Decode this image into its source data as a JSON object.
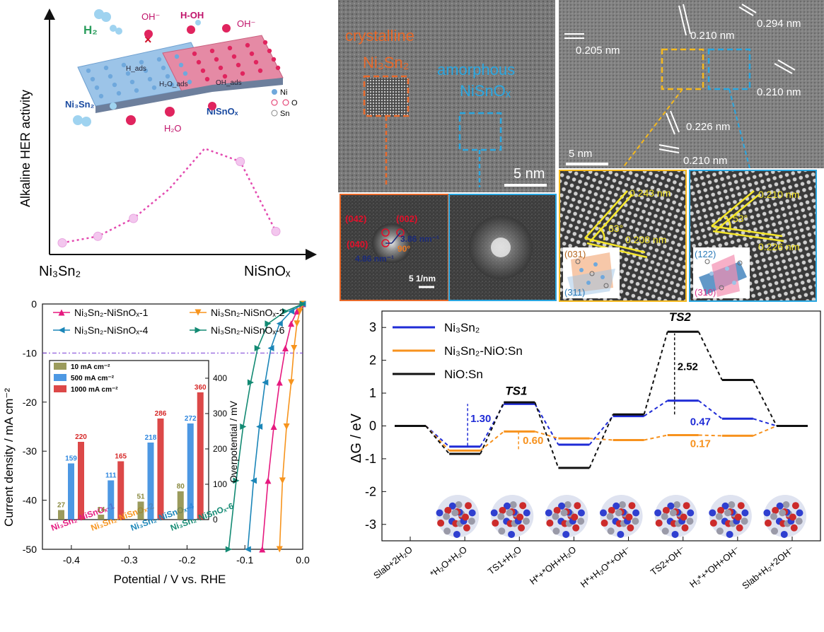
{
  "panel_a": {
    "y_label": "Alkaline HER activity",
    "x_left": "Ni₃Sn₂",
    "x_right": "NiSnOₓ",
    "labels": {
      "h2": "H₂",
      "oh1": "OH⁻",
      "hoh": "H-OH",
      "oh2": "OH⁻",
      "x": "×",
      "hads": "H_ads",
      "ohads": "OH_ads",
      "h2o_ads": "H₂O_ads",
      "h2o": "H₂O",
      "ni3sn2": "Ni₃Sn₂",
      "nisnox": "NiSnOₓ",
      "legend": [
        "Ni",
        "O",
        "Sn"
      ]
    },
    "colors": {
      "ni": "#6fa8dc",
      "o": "#e0245e",
      "sn": "#b8b8c8",
      "curve": "#e34ab0"
    },
    "curve_points": [
      0.05,
      0.09,
      0.2,
      0.38,
      0.63,
      0.55,
      0.12
    ]
  },
  "panel_tem1": {
    "crystalline": "crystalline",
    "ni3sn2": "Ni₃Sn₂",
    "amorphous": "amorphous",
    "nisnox": "NiSnOₓ",
    "scale": "5 nm",
    "fft": {
      "l042": "(042)",
      "l002": "(002)",
      "l040": "(040)",
      "d1": "3.86 nm⁻¹",
      "d2": "4.86 nm⁻¹",
      "angle": "90°",
      "scale": "5 1/nm"
    },
    "colors": {
      "orange": "#e8692a",
      "blue": "#29a7e1"
    }
  },
  "panel_tem2": {
    "d205": "0.205 nm",
    "d210a": "0.210 nm",
    "d294": "0.294 nm",
    "d210b": "0.210 nm",
    "d226": "0.226 nm",
    "d210c": "0.210 nm",
    "scale": "5 nm",
    "inset_left": {
      "d243": "0.243 nm",
      "angle": "63°",
      "d208": "0.208 nm",
      "p1": "(031)",
      "p2": "(311)"
    },
    "inset_right": {
      "d210": "0.210 nm",
      "angle": "53°",
      "d226": "0.226 nm",
      "p1": "(122)",
      "p2": "(310)"
    }
  },
  "chart_data": [
    {
      "type": "line",
      "xlabel": "Potential / V vs. RHE",
      "ylabel": "Current density / mA cm⁻²",
      "xlim": [
        -0.45,
        0.0
      ],
      "ylim": [
        -50,
        0
      ],
      "x_ticks": [
        "-0.4",
        "-0.3",
        "-0.2",
        "-0.1",
        "0.0"
      ],
      "y_ticks": [
        "0",
        "-10",
        "-20",
        "-30",
        "-40",
        "-50"
      ],
      "reference_line": -10,
      "series": [
        {
          "name": "Ni₃Sn₂-NiSnOₓ-1",
          "color": "#e6197f",
          "marker": "triangle-up",
          "x": [
            0.0,
            -0.01,
            -0.02,
            -0.03,
            -0.04,
            -0.05,
            -0.06,
            -0.07
          ],
          "y": [
            0,
            -1.5,
            -4,
            -9,
            -16,
            -25,
            -36,
            -50
          ]
        },
        {
          "name": "Ni₃Sn₂-NiSnOₓ-2",
          "color": "#f7941d",
          "marker": "triangle-down",
          "x": [
            0.0,
            -0.005,
            -0.01,
            -0.015,
            -0.02,
            -0.028,
            -0.035,
            -0.04
          ],
          "y": [
            0,
            -1.5,
            -4,
            -9,
            -16,
            -25,
            -36,
            -50
          ]
        },
        {
          "name": "Ni₃Sn₂-NiSnOₓ-4",
          "color": "#1b86b8",
          "marker": "triangle-left",
          "x": [
            0.0,
            -0.02,
            -0.04,
            -0.055,
            -0.065,
            -0.075,
            -0.085,
            -0.095
          ],
          "y": [
            0,
            -1.5,
            -4,
            -9,
            -16,
            -25,
            -36,
            -50
          ]
        },
        {
          "name": "Ni₃Sn₂-NiSnOₓ-6",
          "color": "#138a73",
          "marker": "triangle-right",
          "x": [
            0.0,
            -0.03,
            -0.06,
            -0.078,
            -0.09,
            -0.103,
            -0.115,
            -0.128
          ],
          "y": [
            0,
            -1.5,
            -4,
            -9,
            -16,
            -25,
            -36,
            -50
          ]
        }
      ]
    },
    {
      "type": "bar",
      "ylabel": "Overpotential / mV",
      "ylim": [
        0,
        450
      ],
      "y_ticks": [
        "0",
        "100",
        "200",
        "300",
        "400"
      ],
      "categories": [
        "Ni₃Sn₂-NiSnOₓ-1",
        "Ni₃Sn₂-NiSnOₓ-2",
        "Ni₃Sn₂-NiSnOₓ-4",
        "Ni₃Sn₂-NiSnOₓ-6"
      ],
      "category_colors": [
        "#e6197f",
        "#f7941d",
        "#1b86b8",
        "#138a73"
      ],
      "series": [
        {
          "name": "10 mA cm⁻²",
          "color": "#8a8a40",
          "values": [
            27,
            14,
            51,
            80
          ]
        },
        {
          "name": "500 mA cm⁻²",
          "color": "#2e86de",
          "values": [
            159,
            111,
            218,
            272
          ]
        },
        {
          "name": "1000 mA cm⁻²",
          "color": "#d62828",
          "values": [
            220,
            165,
            286,
            360
          ]
        }
      ],
      "value_labels": [
        [
          "27",
          "14",
          "51",
          "80"
        ],
        [
          "159",
          "111",
          "218",
          "272"
        ],
        [
          "220",
          "165",
          "286",
          "360"
        ]
      ]
    },
    {
      "type": "line",
      "ylabel": "ΔG / eV",
      "ylim": [
        -3.5,
        3.5
      ],
      "y_ticks": [
        "3",
        "2",
        "1",
        "0",
        "-1",
        "-2",
        "-3"
      ],
      "categories": [
        "Slab+2H₂O",
        "*H₂O+H₂O",
        "TS1+H₂O",
        "H*+*OH+H₂O",
        "H*+H₂O*+OH⁻",
        "TS2+OH⁻",
        "H₂*+*OH+OH⁻",
        "Slab+H₂+2OH⁻"
      ],
      "series": [
        {
          "name": "Ni₃Sn₂",
          "color": "#1f2bd6",
          "values": [
            0,
            -0.63,
            0.67,
            -0.57,
            0.3,
            0.77,
            0.22,
            0
          ]
        },
        {
          "name": "Ni₃Sn₂-NiO:Sn",
          "color": "#f7921e",
          "values": [
            0,
            -0.75,
            -0.17,
            -0.38,
            -0.43,
            -0.28,
            -0.3,
            0
          ]
        },
        {
          "name": "NiO:Sn",
          "color": "#111111",
          "values": [
            0,
            -0.85,
            0.72,
            -1.28,
            0.35,
            2.87,
            1.4,
            0
          ]
        }
      ],
      "annotations": {
        "ts1": "TS1",
        "ts2": "TS2",
        "e252": "2.52",
        "e130": "1.30",
        "e047": "0.47",
        "e060": "0.60",
        "e017": "0.17"
      }
    }
  ]
}
